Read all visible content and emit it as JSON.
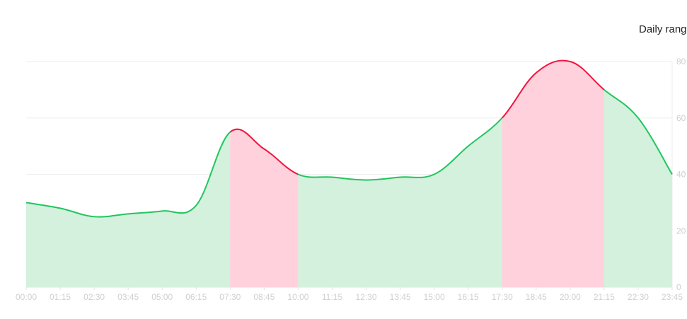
{
  "chart_data": {
    "type": "area",
    "title": "Daily rang",
    "x": [
      "00:00",
      "01:15",
      "02:30",
      "03:45",
      "05:00",
      "06:15",
      "07:30",
      "08:45",
      "10:00",
      "11:15",
      "12:30",
      "13:45",
      "15:00",
      "16:15",
      "17:30",
      "18:45",
      "20:00",
      "21:15",
      "22:30",
      "23:45"
    ],
    "xlabels": [
      "00:00",
      "01:15",
      "02:30",
      "03:45",
      "05:00",
      "06:15",
      "07:30",
      "08:45",
      "10:00",
      "11:15",
      "12:30",
      "13:45",
      "15:00",
      "16:15",
      "17:30",
      "18:45",
      "20:00",
      "21:15",
      "22:30",
      "23:45"
    ],
    "yticks": [
      "0",
      "20",
      "40",
      "60",
      "80"
    ],
    "values": [
      30,
      28,
      25,
      26,
      27,
      29,
      55,
      49,
      40,
      39,
      38,
      39,
      40,
      50,
      60,
      76,
      80,
      70,
      60,
      40
    ],
    "ylim": [
      0,
      80
    ],
    "highlight_ranges": [
      [
        "07:30",
        "10:00"
      ],
      [
        "17:30",
        "21:15"
      ]
    ],
    "colors": {
      "normal_line": "#22c55e",
      "normal_fill": "#d3f1dd",
      "highlight_line": "#f0163f",
      "highlight_fill": "#ffd1dc",
      "grid": "#eeeeee",
      "tick": "#cfcfcf"
    },
    "grid": true
  }
}
